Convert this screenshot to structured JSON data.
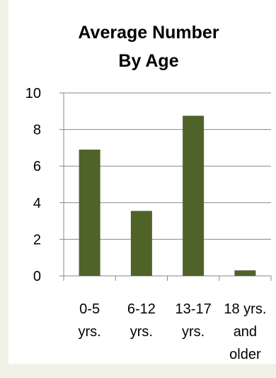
{
  "chart_data": {
    "type": "bar",
    "title_lines": [
      "Average Number",
      "By Age"
    ],
    "categories": [
      [
        "0-5",
        "yrs."
      ],
      [
        "6-12",
        "yrs."
      ],
      [
        "13-17",
        "yrs."
      ],
      [
        "18 yrs.",
        "and",
        "older"
      ]
    ],
    "values": [
      6.9,
      3.55,
      8.75,
      0.3
    ],
    "ylim": [
      0,
      10
    ],
    "yticks": [
      "0",
      "2",
      "4",
      "6",
      "8",
      "10"
    ],
    "grid": true,
    "bar_color": "#4f6228"
  }
}
